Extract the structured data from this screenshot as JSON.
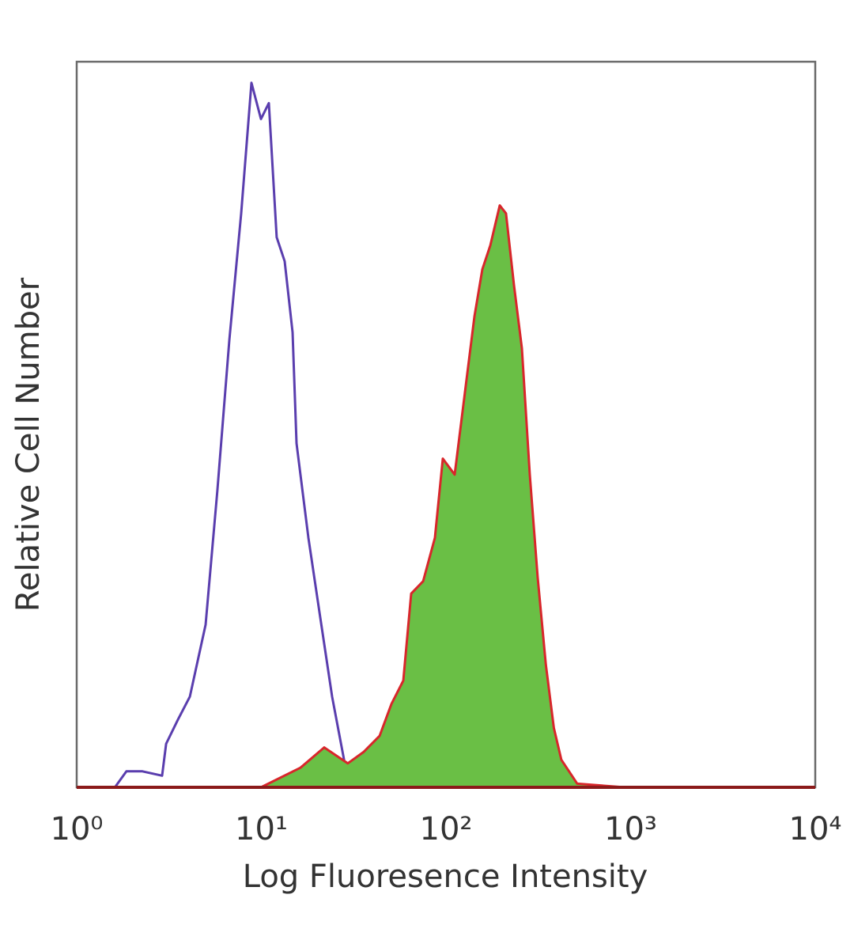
{
  "chart_data": {
    "type": "histogram-line",
    "x_label": "Log Fluoresence Intensity",
    "y_label": "Relative Cell Number",
    "xscale": "log",
    "xlim": [
      1,
      10000
    ],
    "xticks": [
      {
        "value": 1,
        "label": "10⁰"
      },
      {
        "value": 10,
        "label": "10¹"
      },
      {
        "value": 100,
        "label": "10²"
      },
      {
        "value": 1000,
        "label": "10³"
      },
      {
        "value": 10000,
        "label": "10⁴"
      }
    ],
    "ylim": [
      0,
      100
    ],
    "series": [
      {
        "color": "#5a3eae",
        "fill": null,
        "x": [
          1.61,
          1.86,
          2.27,
          2.9,
          3.05,
          3.53,
          4.1,
          4.99,
          5.78,
          6.71,
          7.78,
          8.84,
          9.95,
          10.98,
          12.11,
          13.37,
          14.76,
          15.51,
          17.98,
          20.85,
          24.17,
          28.04,
          29.44
        ],
        "values": [
          0,
          2.2,
          2.2,
          1.6,
          6,
          9.3,
          12.5,
          22.4,
          40.9,
          61.6,
          79.1,
          97.1,
          92.1,
          94.3,
          75.8,
          72.5,
          62.7,
          47.4,
          34.4,
          23.4,
          12.5,
          3.8,
          0
        ]
      },
      {
        "color": "#d8262b",
        "fill": "#6abf45",
        "x": [
          9.95,
          16.29,
          21.9,
          29.4,
          35.9,
          43.7,
          50.7,
          58.7,
          64.8,
          75.2,
          87.1,
          96.1,
          111.5,
          129.2,
          142.6,
          157.4,
          173.8,
          195.5,
          211.4,
          233.4,
          257.6,
          284.4,
          314,
          347.5,
          383.7,
          421.7,
          514,
          929
        ],
        "values": [
          0,
          2.7,
          5.5,
          3.3,
          4.9,
          7.1,
          11.5,
          14.7,
          26.7,
          28.4,
          34.4,
          45.3,
          43.1,
          56.2,
          64.9,
          71.4,
          74.7,
          80.2,
          79.1,
          69.2,
          60.5,
          43.1,
          28.9,
          16.9,
          8.2,
          3.8,
          0.5,
          0
        ]
      }
    ]
  }
}
